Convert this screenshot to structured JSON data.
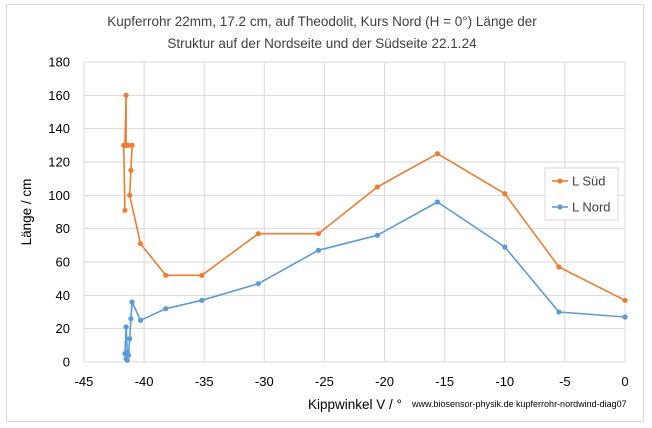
{
  "chart_data": {
    "type": "line",
    "title_lines": [
      "Kupferrohr 22mm, 17.2 cm, auf Theodolit,  Kurs Nord (H = 0°) Länge der",
      "Struktur auf der Nordseite und der Südseite 22.1.24"
    ],
    "xlabel": "Kippwinkel V / °",
    "ylabel": "Länge / cm",
    "xlim": [
      -45,
      0
    ],
    "ylim": [
      0,
      180
    ],
    "xticks": [
      -45,
      -40,
      -35,
      -30,
      -25,
      -20,
      -15,
      -10,
      -5,
      0
    ],
    "yticks": [
      0,
      20,
      40,
      60,
      80,
      100,
      120,
      140,
      160,
      180
    ],
    "grid": "horizontal and vertical",
    "legend_position": "right",
    "credit": "www.biosensor-physik.de  kupferrohr-nordwind-diag07",
    "series": [
      {
        "name": "L Süd",
        "color": "#ED7D31",
        "points": [
          [
            0,
            37
          ],
          [
            -5.5,
            57
          ],
          [
            -10,
            101
          ],
          [
            -15.6,
            125
          ],
          [
            -20.6,
            105
          ],
          [
            -25.5,
            77
          ],
          [
            -30.5,
            77
          ],
          [
            -35.2,
            52
          ],
          [
            -38.2,
            52
          ],
          [
            -40.3,
            71
          ],
          [
            -41.2,
            100
          ],
          [
            -41.1,
            115
          ],
          [
            -41.0,
            130
          ],
          [
            -41.3,
            130
          ],
          [
            -41.5,
            130
          ],
          [
            -41.5,
            160
          ],
          [
            -41.6,
            130
          ],
          [
            -41.7,
            130
          ],
          [
            -41.6,
            91
          ]
        ]
      },
      {
        "name": "L Nord",
        "color": "#5B9BD5",
        "points": [
          [
            0,
            27
          ],
          [
            -5.5,
            30
          ],
          [
            -10,
            69
          ],
          [
            -15.6,
            96
          ],
          [
            -20.6,
            76
          ],
          [
            -25.5,
            67
          ],
          [
            -30.5,
            47
          ],
          [
            -35.2,
            37
          ],
          [
            -38.2,
            32
          ],
          [
            -40.3,
            25
          ],
          [
            -41.0,
            36
          ],
          [
            -41.1,
            26
          ],
          [
            -41.2,
            14
          ],
          [
            -41.3,
            4
          ],
          [
            -41.5,
            2
          ],
          [
            -41.4,
            1
          ],
          [
            -41.6,
            5
          ],
          [
            -41.5,
            21
          ],
          [
            -41.4,
            6
          ]
        ]
      }
    ]
  }
}
